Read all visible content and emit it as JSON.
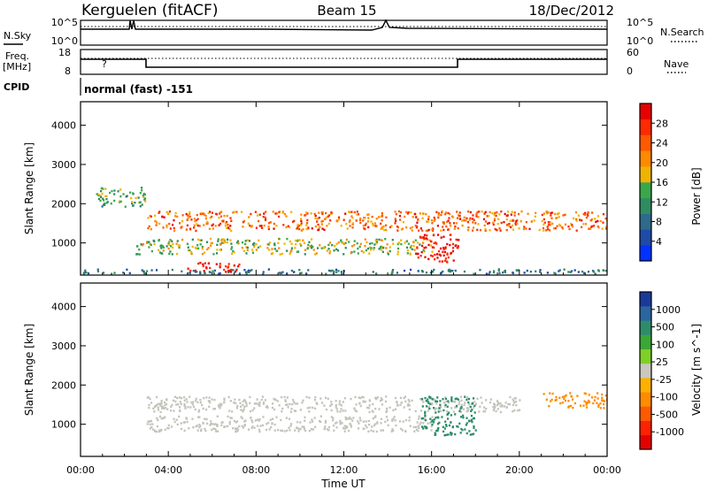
{
  "header": {
    "station": "Kerguelen (fitACF)",
    "beam": "Beam 15",
    "date": "18/Dec/2012"
  },
  "sky_panel": {
    "label": "N.Sky",
    "left_ticks": [
      "10^5",
      "10^0"
    ],
    "right_ticks": [
      "10^5",
      "10^0"
    ],
    "right_label": "N.Search"
  },
  "freq_panel": {
    "label_line1": "Freq.",
    "label_line2": "[MHz]",
    "left_ticks": [
      "18",
      "8"
    ],
    "right_ticks": [
      "60",
      "0"
    ],
    "right_label": "Nave",
    "annotation": "?"
  },
  "cpid_panel": {
    "label": "CPID",
    "value": "normal (fast) -151"
  },
  "colors": {
    "power_scale": [
      "#0033ff",
      "#1f4aa8",
      "#2e6a8c",
      "#2f8c60",
      "#3aa84a",
      "#f0b400",
      "#ff8a00",
      "#ff5a00",
      "#ff2a00",
      "#e80000"
    ],
    "velocity_scale": [
      "#1a3a9a",
      "#2a66a0",
      "#2f8c6a",
      "#3aa836",
      "#7ed028",
      "#c8c8c0",
      "#ffb000",
      "#ff8c00",
      "#ff5a00",
      "#ff2200",
      "#e60000"
    ],
    "ground_scatter": "#c4c4bc"
  },
  "chart_data": [
    {
      "type": "heatmap",
      "panel": "power",
      "ylabel": "Slant Range [km]",
      "ylim": [
        180,
        4600
      ],
      "y_ticks": [
        "1000",
        "2000",
        "3000",
        "4000"
      ],
      "xlim_hours": [
        0,
        24
      ],
      "colorbar_label": "Power [dB]",
      "colorbar_ticks": [
        "4",
        "8",
        "12",
        "16",
        "20",
        "24",
        "28"
      ],
      "colorbar_range": [
        0,
        30
      ],
      "echo_regions": [
        {
          "name": "near-range band",
          "t": [
            0,
            24
          ],
          "range_km": [
            200,
            320
          ],
          "power_db": [
            4,
            12
          ]
        },
        {
          "name": "strong E-region patch",
          "t": [
            4.8,
            7.2
          ],
          "range_km": [
            250,
            500
          ],
          "power_db": [
            24,
            30
          ]
        },
        {
          "name": "F-region lower band",
          "t": [
            2.5,
            16
          ],
          "range_km": [
            700,
            1100
          ],
          "power_db": [
            10,
            20
          ]
        },
        {
          "name": "main F-region band",
          "t": [
            3,
            24
          ],
          "range_km": [
            1300,
            1800
          ],
          "power_db": [
            16,
            28
          ]
        },
        {
          "name": "early echoes",
          "t": [
            0.7,
            3
          ],
          "range_km": [
            1900,
            2400
          ],
          "power_db": [
            8,
            16
          ]
        },
        {
          "name": "intense patch",
          "t": [
            15.2,
            17.2
          ],
          "range_km": [
            500,
            1200
          ],
          "power_db": [
            24,
            30
          ]
        }
      ]
    },
    {
      "type": "heatmap",
      "panel": "velocity",
      "ylabel": "Slant Range [km]",
      "ylim": [
        180,
        4600
      ],
      "y_ticks": [
        "1000",
        "2000",
        "3000",
        "4000"
      ],
      "xlim_hours": [
        0,
        24
      ],
      "colorbar_label": "Velocity [m s^-1]",
      "colorbar_ticks": [
        "1000",
        "500",
        "100",
        "25",
        "-25",
        "-100",
        "-500",
        "-1000"
      ],
      "colorbar_range": [
        -1000,
        1000
      ],
      "echo_regions": [
        {
          "name": "ground scatter band",
          "t": [
            3,
            16
          ],
          "range_km": [
            800,
            1200
          ],
          "velocity": [
            -25,
            25
          ]
        },
        {
          "name": "ground scatter upper",
          "t": [
            3,
            20
          ],
          "range_km": [
            1300,
            1700
          ],
          "velocity": [
            -25,
            25
          ]
        },
        {
          "name": "green patch",
          "t": [
            15.5,
            18
          ],
          "range_km": [
            700,
            1700
          ],
          "velocity": [
            100,
            500
          ]
        },
        {
          "name": "orange patch",
          "t": [
            21,
            24
          ],
          "range_km": [
            1400,
            1800
          ],
          "velocity": [
            -500,
            -100
          ]
        }
      ]
    }
  ],
  "x_axis": {
    "title": "Time UT",
    "ticks": [
      "00:00",
      "04:00",
      "08:00",
      "12:00",
      "16:00",
      "20:00",
      "00:00"
    ]
  }
}
